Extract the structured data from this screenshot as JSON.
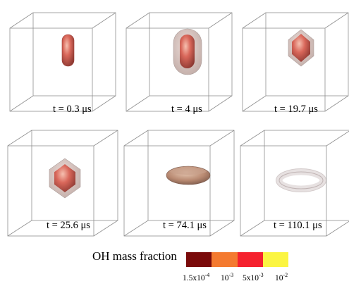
{
  "panels": [
    {
      "time_label": "t = 0.3 μs",
      "shape": "capsule-small"
    },
    {
      "time_label": "t = 4 μs",
      "shape": "capsule-large"
    },
    {
      "time_label": "t = 19.7 μs",
      "shape": "hexagonal-body"
    },
    {
      "time_label": "t = 25.6 μs",
      "shape": "hexagonal-body-wide"
    },
    {
      "time_label": "t = 74.1 μs",
      "shape": "oblate-disc"
    },
    {
      "time_label": "t = 110.1 μs",
      "shape": "torus-ring"
    }
  ],
  "legend": {
    "title": "OH mass fraction",
    "colors": [
      "#7a0a0a",
      "#f47a30",
      "#f5222e",
      "#fbf542"
    ],
    "ticks": [
      {
        "base": "1.5x10",
        "exp": "-4"
      },
      {
        "base": "10",
        "exp": "-3"
      },
      {
        "base": "5x10",
        "exp": "-3"
      },
      {
        "base": "10",
        "exp": "-2"
      }
    ]
  }
}
